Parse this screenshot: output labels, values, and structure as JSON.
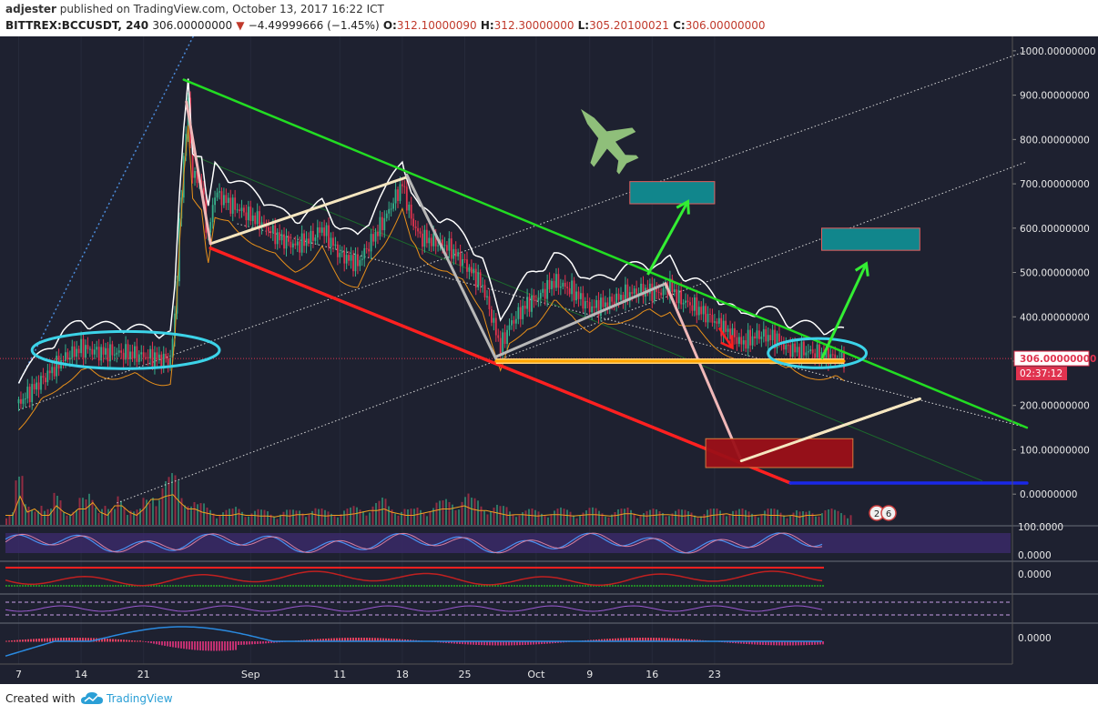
{
  "header": {
    "author": "adjester",
    "published_text": "published on TradingView.com, October 13, 2017 16:22 ICT",
    "symbol": "BITTREX:BCCUSDT, 240",
    "last": "306.00000000",
    "change": "−4.49999666 (−1.45%)",
    "o_label": "O:",
    "o_value": "312.10000090",
    "h_label": "H:",
    "h_value": "312.30000000",
    "l_label": "L:",
    "l_value": "305.20100021",
    "c_label": "C:",
    "c_value": "306.00000000"
  },
  "footer": {
    "created_with": "Created with",
    "brand": "TradingView"
  },
  "colors": {
    "background": "#1e2130",
    "down_candle": "#e0334f",
    "up_candle": "#35b08a",
    "channel_top": "#22dd22",
    "channel_bottom": "#ff2020",
    "support": "#ffa500",
    "ellipse": "#3cd3e8",
    "box_teal": "#11868c",
    "box_red": "#9c1018"
  },
  "chart_data": {
    "type": "candlestick",
    "title": "",
    "xlabel": "",
    "ylabel": "",
    "y_range": [
      -50,
      1050
    ],
    "y_ticks": [
      "1000.00000000",
      "900.00000000",
      "800.00000000",
      "700.00000000",
      "600.00000000",
      "500.00000000",
      "400.00000000",
      "300.00000000",
      "200.00000000",
      "100.00000000",
      "0.00000000"
    ],
    "price_tag": "306.00000000",
    "countdown": "02:37:12",
    "x_ticks": [
      "7",
      "14",
      "21",
      "Sep",
      "11",
      "18",
      "25",
      "Oct",
      "9",
      "16",
      "23"
    ],
    "close_path": [
      [
        0,
        205
      ],
      [
        3,
        265
      ],
      [
        5,
        305
      ],
      [
        7,
        330
      ],
      [
        9,
        320
      ],
      [
        12,
        318
      ],
      [
        14,
        312
      ],
      [
        16,
        305
      ],
      [
        17,
        302
      ],
      [
        17.5,
        400
      ],
      [
        18,
        600
      ],
      [
        18.5,
        760
      ],
      [
        19,
        880
      ],
      [
        19.5,
        720
      ],
      [
        20.5,
        700
      ],
      [
        21.2,
        575
      ],
      [
        22,
        680
      ],
      [
        24,
        650
      ],
      [
        27,
        615
      ],
      [
        29,
        580
      ],
      [
        31,
        560
      ],
      [
        33,
        580
      ],
      [
        34,
        600
      ],
      [
        36,
        540
      ],
      [
        38,
        520
      ],
      [
        41,
        620
      ],
      [
        43,
        700
      ],
      [
        44,
        620
      ],
      [
        45,
        580
      ],
      [
        48,
        560
      ],
      [
        50,
        520
      ],
      [
        52,
        470
      ],
      [
        54,
        330
      ],
      [
        55,
        380
      ],
      [
        57,
        430
      ],
      [
        58,
        440
      ],
      [
        60,
        480
      ],
      [
        62,
        460
      ],
      [
        64,
        420
      ],
      [
        66,
        430
      ],
      [
        68,
        450
      ],
      [
        70,
        460
      ],
      [
        72,
        455
      ],
      [
        73,
        470
      ],
      [
        74,
        440
      ],
      [
        76,
        420
      ],
      [
        78,
        390
      ],
      [
        80,
        360
      ],
      [
        81,
        340
      ],
      [
        83,
        360
      ],
      [
        85,
        350
      ],
      [
        86,
        330
      ],
      [
        87,
        325
      ],
      [
        89,
        320
      ],
      [
        91,
        310
      ],
      [
        92.5,
        306
      ]
    ],
    "volume_profile": [
      0.3,
      0.9,
      0.4,
      0.5,
      0.3,
      0.6,
      0.4,
      0.3,
      0.5,
      0.7,
      0.4,
      0.3,
      0.6,
      0.4,
      0.3,
      0.5,
      0.8,
      0.9,
      0.95,
      0.7,
      0.5,
      0.4,
      0.35,
      0.3,
      0.3,
      0.35,
      0.3,
      0.3,
      0.28,
      0.25,
      0.3,
      0.28,
      0.32,
      0.35,
      0.3,
      0.28,
      0.3,
      0.32,
      0.35,
      0.4,
      0.45,
      0.5,
      0.4,
      0.35,
      0.3,
      0.35,
      0.4,
      0.45,
      0.5,
      0.55,
      0.6,
      0.5,
      0.45,
      0.4,
      0.35,
      0.3,
      0.32,
      0.3,
      0.28,
      0.3,
      0.32,
      0.3,
      0.28,
      0.3,
      0.32,
      0.3,
      0.28,
      0.3,
      0.35,
      0.3,
      0.28,
      0.3,
      0.32,
      0.3,
      0.28,
      0.3,
      0.25,
      0.3,
      0.32,
      0.35,
      0.3,
      0.28,
      0.3,
      0.32,
      0.3,
      0.28,
      0.3,
      0.25,
      0.3,
      0.32,
      0.3,
      0.28,
      0.3
    ],
    "indicator_labels": [
      "100.0000",
      "0.0000",
      "0.0000",
      "0.0000"
    ],
    "annotations": {
      "green_trendline": [
        [
          18.5,
          935
        ],
        [
          113,
          150
        ]
      ],
      "red_trendline": [
        [
          21.5,
          555
        ],
        [
          86.5,
          25
        ]
      ],
      "orange_support": [
        [
          53.5,
          300
        ],
        [
          92.5,
          300
        ]
      ],
      "blue_line": [
        [
          86.5,
          25
        ],
        [
          113,
          25
        ]
      ],
      "fib_channel_upper": [
        [
          0,
          190
        ],
        [
          113,
          1000
        ]
      ],
      "fib_channel_mid": [
        [
          11,
          -20
        ],
        [
          113,
          750
        ]
      ],
      "fib_channel_low": [
        [
          24.5,
          610
        ],
        [
          113,
          150
        ]
      ],
      "cream_rise_1": [
        [
          21.5,
          565
        ],
        [
          43.5,
          715
        ]
      ],
      "cream_rise_2": [
        [
          81,
          75
        ],
        [
          101,
          215
        ]
      ],
      "gray_drop": [
        [
          43.5,
          720
        ],
        [
          53.5,
          305
        ]
      ],
      "gray_rise": [
        [
          53.5,
          310
        ],
        [
          72.5,
          475
        ]
      ],
      "pink_drop": [
        [
          72.5,
          475
        ],
        [
          81,
          75
        ]
      ],
      "pink_first_drop": [
        [
          18.8,
          885
        ],
        [
          21.5,
          565
        ]
      ],
      "green_arrows": [
        [
          [
            70.5,
            495
          ],
          [
            75,
            660
          ]
        ],
        [
          [
            90,
            305
          ],
          [
            95,
            520
          ]
        ]
      ],
      "red_arrow": [
        [
          78.5,
          375
        ],
        [
          80,
          330
        ]
      ],
      "teal_boxes": [
        {
          "x0": 68.5,
          "x1": 78,
          "y0": 655,
          "y1": 705
        },
        {
          "x0": 90,
          "x1": 101,
          "y0": 550,
          "y1": 600
        }
      ],
      "red_box": {
        "x0": 77,
        "x1": 93.5,
        "y0": 60,
        "y1": 125
      },
      "ellipses": [
        {
          "cx": 12,
          "cy": 325,
          "rx": 10.5,
          "ry": 28
        },
        {
          "cx": 89.5,
          "cy": 318,
          "rx": 5.5,
          "ry": 22
        }
      ]
    },
    "event_badges": [
      "2",
      "6"
    ]
  }
}
